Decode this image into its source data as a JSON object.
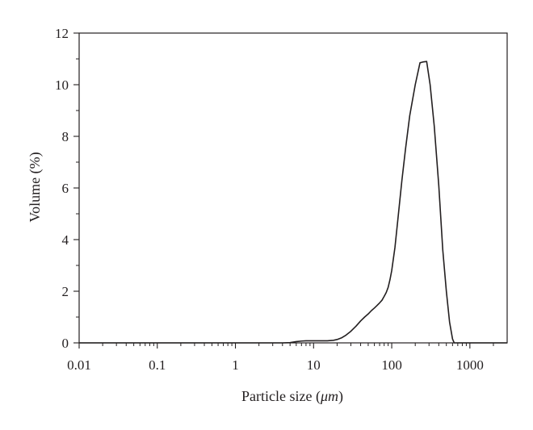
{
  "chart_data": {
    "type": "line",
    "xlabel": "Particle size (",
    "xlabel_unit": "μm",
    "xlabel_close": ")",
    "ylabel": "Volume (%)",
    "xscale": "log",
    "xlim": [
      0.01,
      3000
    ],
    "ylim": [
      0,
      12
    ],
    "x_ticks": [
      0.01,
      0.1,
      1,
      10,
      100,
      1000
    ],
    "x_tick_labels": [
      "0.01",
      "0.1",
      "1",
      "10",
      "100",
      "1000"
    ],
    "y_ticks": [
      0,
      2,
      4,
      6,
      8,
      10,
      12
    ],
    "y_tick_labels": [
      "0",
      "2",
      "4",
      "6",
      "8",
      "10",
      "12"
    ],
    "grid": false,
    "series": [
      {
        "color": "#231f20",
        "x": [
          0.01,
          4,
          5,
          6,
          7,
          8,
          10,
          12,
          15,
          18,
          20,
          23,
          26,
          30,
          35,
          40,
          45,
          50,
          55,
          60,
          65,
          70,
          75,
          80,
          85,
          90,
          95,
          100,
          110,
          120,
          135,
          150,
          170,
          200,
          230,
          250,
          280,
          310,
          350,
          400,
          450,
          500,
          550,
          600,
          630,
          700,
          1000,
          3000
        ],
        "y": [
          0,
          0,
          0.01,
          0.05,
          0.07,
          0.08,
          0.08,
          0.08,
          0.08,
          0.1,
          0.13,
          0.2,
          0.3,
          0.45,
          0.65,
          0.85,
          1.0,
          1.12,
          1.25,
          1.35,
          1.45,
          1.55,
          1.65,
          1.8,
          1.95,
          2.15,
          2.45,
          2.8,
          3.7,
          4.8,
          6.3,
          7.5,
          8.8,
          10.0,
          10.85,
          10.88,
          10.9,
          10.0,
          8.4,
          6.1,
          3.6,
          2.0,
          0.8,
          0.15,
          0,
          0,
          0,
          0
        ]
      }
    ]
  }
}
